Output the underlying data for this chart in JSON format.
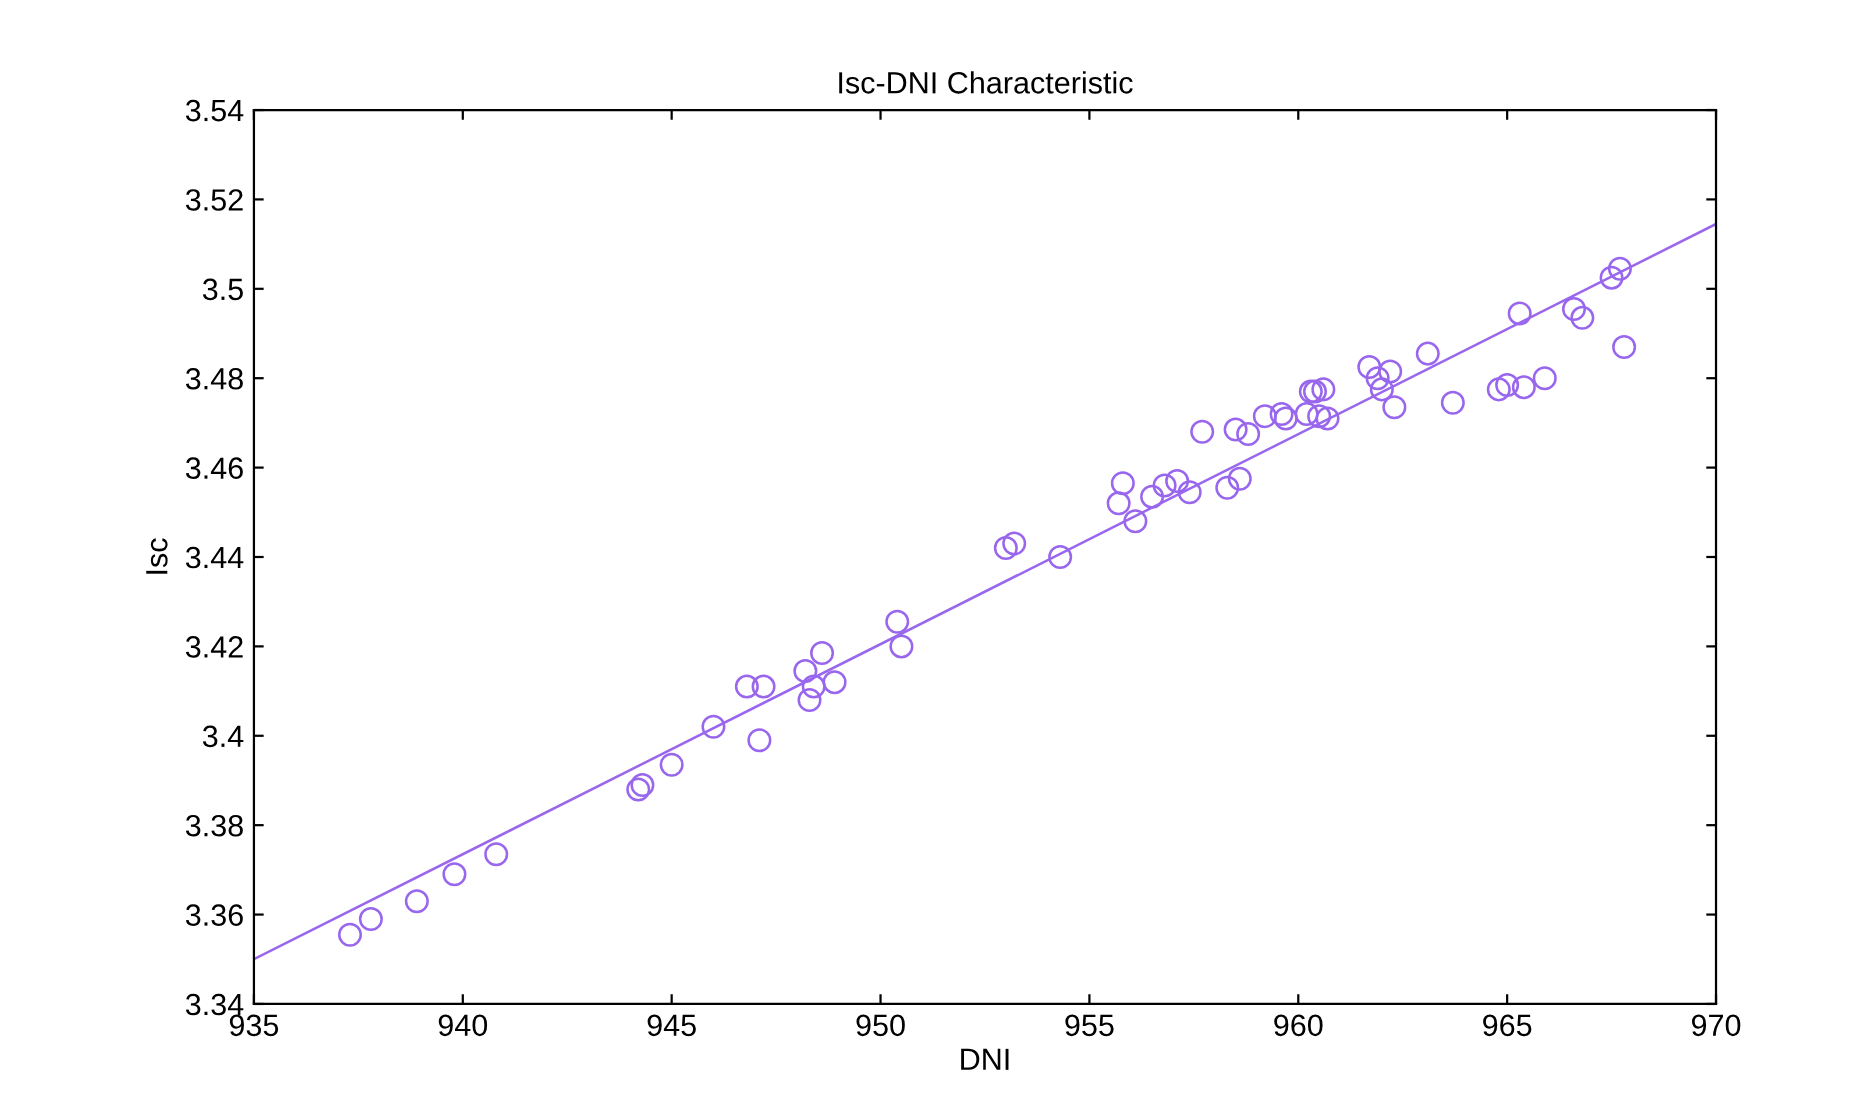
{
  "chart_data": {
    "type": "scatter",
    "title": "Isc-DNI Characteristic",
    "xlabel": "DNI",
    "ylabel": "Isc",
    "xlim": [
      935,
      970
    ],
    "xticks": [
      935,
      940,
      945,
      950,
      955,
      960,
      965,
      970
    ],
    "ylim": [
      3.34,
      3.54
    ],
    "yticks": [
      3.34,
      3.36,
      3.38,
      3.4,
      3.42,
      3.44,
      3.46,
      3.48,
      3.5,
      3.52,
      3.54
    ],
    "grid": false,
    "legend": false,
    "series": [
      {
        "color": "#9966ee",
        "marker": "circle",
        "x": [
          937.3,
          937.8,
          938.9,
          939.8,
          940.8,
          944.2,
          944.3,
          945.0,
          946.0,
          946.8,
          947.1,
          947.2,
          948.2,
          948.3,
          948.4,
          948.6,
          948.9,
          950.4,
          950.5,
          953.0,
          953.2,
          954.3,
          955.7,
          955.8,
          956.1,
          956.5,
          956.8,
          957.1,
          957.4,
          957.7,
          958.3,
          958.5,
          958.6,
          958.8,
          959.2,
          959.6,
          959.7,
          960.2,
          960.3,
          960.4,
          960.5,
          960.6,
          960.7,
          961.7,
          961.9,
          962.0,
          962.2,
          962.3,
          963.1,
          963.7,
          964.8,
          965.0,
          965.3,
          965.4,
          965.9,
          966.6,
          966.8,
          967.5,
          967.7,
          967.8
        ],
        "values": [
          3.3555,
          3.359,
          3.363,
          3.369,
          3.3735,
          3.388,
          3.389,
          3.3935,
          3.402,
          3.411,
          3.399,
          3.411,
          3.4145,
          3.408,
          3.411,
          3.4185,
          3.412,
          3.4255,
          3.42,
          3.442,
          3.443,
          3.44,
          3.452,
          3.4565,
          3.448,
          3.4535,
          3.456,
          3.457,
          3.4545,
          3.468,
          3.4555,
          3.4685,
          3.4575,
          3.4675,
          3.4715,
          3.472,
          3.471,
          3.472,
          3.477,
          3.477,
          3.4715,
          3.4775,
          3.471,
          3.4825,
          3.48,
          3.4775,
          3.4815,
          3.4735,
          3.4855,
          3.4745,
          3.4775,
          3.4785,
          3.4945,
          3.478,
          3.48,
          3.4955,
          3.4935,
          3.5025,
          3.5045,
          3.487
        ]
      },
      {
        "type": "line",
        "color": "#9966ee",
        "line_style": "solid",
        "x": [
          935,
          970
        ],
        "values": [
          3.35,
          3.5145
        ]
      }
    ]
  }
}
